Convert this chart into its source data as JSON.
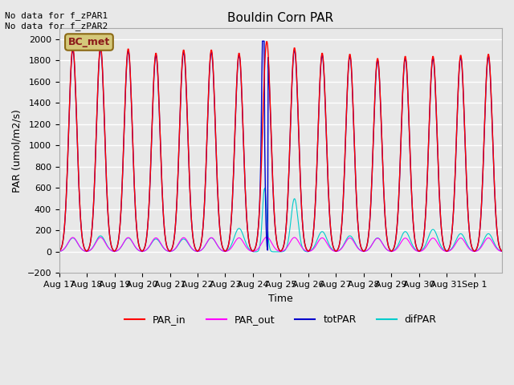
{
  "title": "Bouldin Corn PAR",
  "xlabel": "Time",
  "ylabel": "PAR (umol/m2/s)",
  "ylim": [
    -200,
    2100
  ],
  "yticks": [
    -200,
    0,
    200,
    400,
    600,
    800,
    1000,
    1200,
    1400,
    1600,
    1800,
    2000
  ],
  "annotation_top": "No data for f_zPAR1\nNo data for f_zPAR2",
  "box_label": "BC_met",
  "legend_entries": [
    "PAR_in",
    "PAR_out",
    "totPAR",
    "difPAR"
  ],
  "line_colors": {
    "PAR_in": "#ff0000",
    "PAR_out": "#ff00ff",
    "totPAR": "#0000cc",
    "difPAR": "#00cccc"
  },
  "background_color": "#e8e8e8",
  "plot_bg_color": "#e8e8e8",
  "grid_color": "#ffffff",
  "n_days": 16,
  "tick_labels": [
    "Aug 17",
    "Aug 18",
    "Aug 19",
    "Aug 20",
    "Aug 21",
    "Aug 22",
    "Aug 23",
    "Aug 24",
    "Aug 25",
    "Aug 26",
    "Aug 27",
    "Aug 28",
    "Aug 29",
    "Aug 30",
    "Aug 31",
    "Sep 1"
  ],
  "par_in_peaks": [
    1920,
    1930,
    1910,
    1870,
    1900,
    1900,
    1870,
    1980,
    1920,
    1870,
    1860,
    1820,
    1840,
    1840,
    1850,
    1860
  ],
  "difpar_peaks": [
    130,
    150,
    130,
    120,
    120,
    130,
    220,
    600,
    500,
    190,
    150,
    130,
    190,
    210,
    170,
    170
  ]
}
